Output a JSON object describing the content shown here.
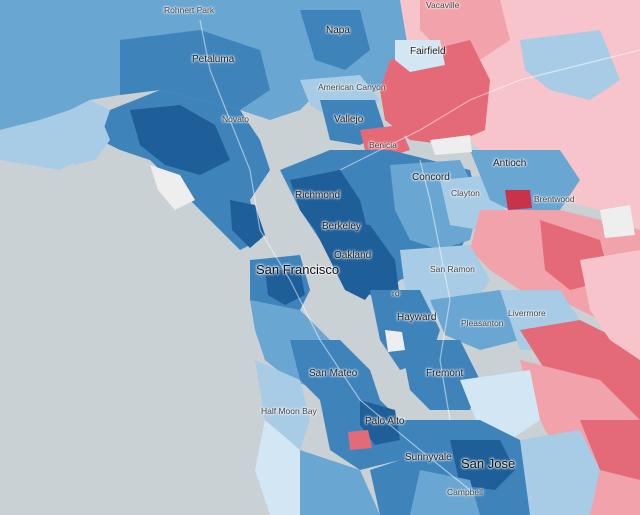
{
  "map": {
    "colors": {
      "water": "#c9d1d5",
      "dark_blue": "#1f5f99",
      "blue": "#3f83bb",
      "mid_blue": "#6aa6d2",
      "light_blue": "#a9cce6",
      "pale_blue": "#d3e6f3",
      "neutral": "#eeeeee",
      "pale_red": "#f6c4ca",
      "light_red": "#f1a2ab",
      "red": "#e56a78",
      "dark_red": "#c8334a"
    },
    "places": {
      "rohnert_park": "Rohnert Park",
      "vacaville": "Vacaville",
      "napa": "Napa",
      "petaluma": "Petaluma",
      "fairfield": "Fairfield",
      "american_canyon": "American Canyon",
      "novato": "Novato",
      "vallejo": "Vallejo",
      "benicia": "Benicia",
      "antioch": "Antioch",
      "concord": "Concord",
      "clayton": "Clayton",
      "brentwood": "Brentwood",
      "richmond": "Richmond",
      "berkeley": "Berkeley",
      "oakland": "Oakland",
      "san_francisco": "San Francisco",
      "san_ramon": "San Ramon",
      "san_leandro": "ro",
      "hayward": "Hayward",
      "pleasanton": "Pleasanton",
      "livermore": "Livermore",
      "san_mateo": "San Mateo",
      "fremont": "Fremont",
      "half_moon_bay": "Half Moon Bay",
      "palo_alto": "Palo Alto",
      "sunnyvale": "Sunnyvale",
      "san_jose": "San Jose",
      "campbell": "Campbell"
    }
  }
}
